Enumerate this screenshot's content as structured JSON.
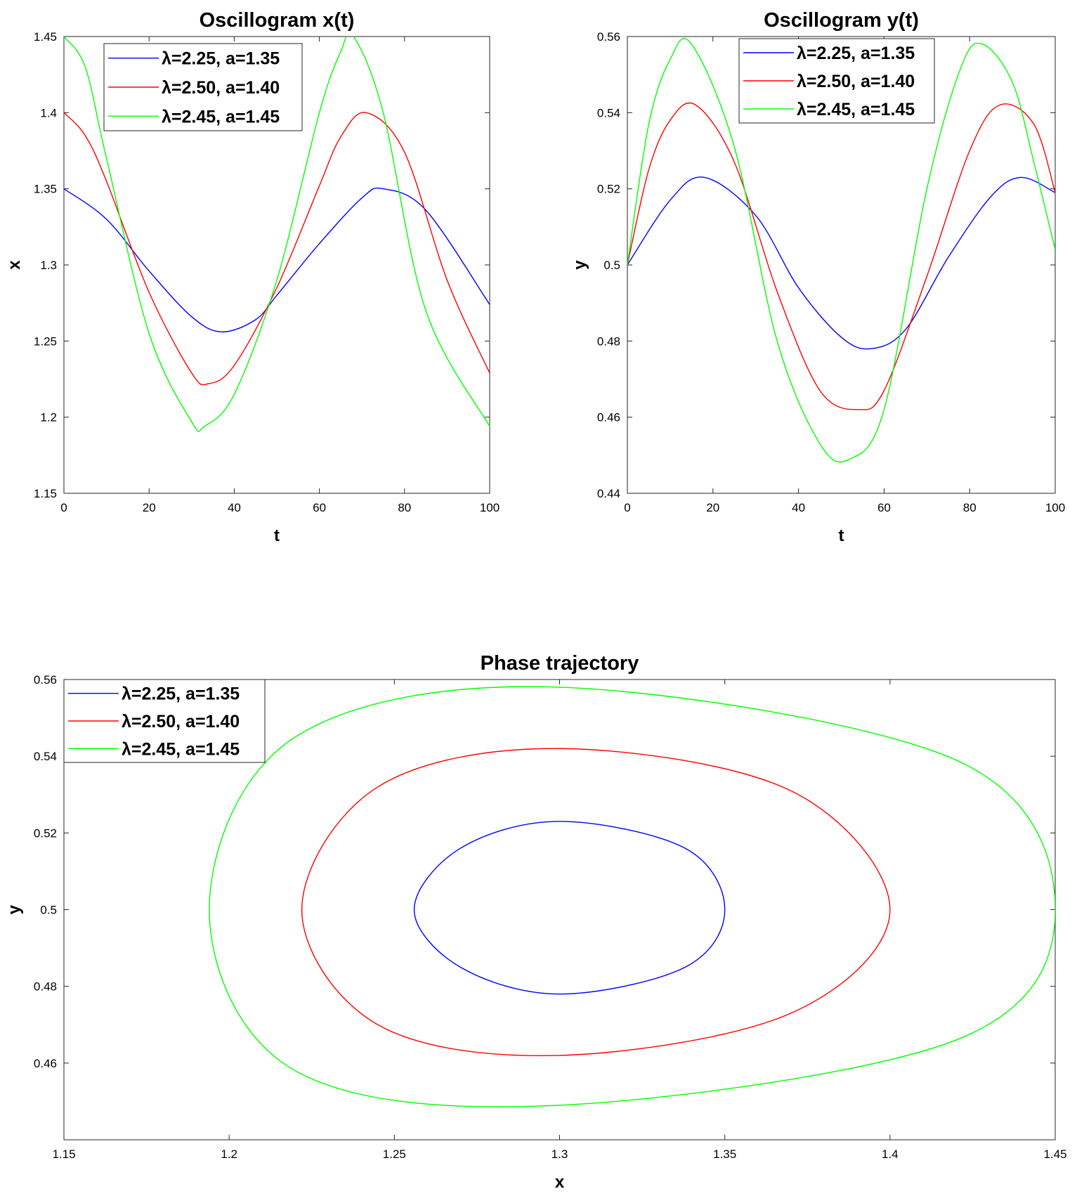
{
  "chart_data": [
    {
      "type": "line",
      "title": "Oscillogram x(t)",
      "xlabel": "t",
      "ylabel": "x",
      "xlim": [
        0,
        100
      ],
      "ylim": [
        1.15,
        1.45
      ],
      "xticks": [
        "0",
        "20",
        "40",
        "60",
        "80",
        "100"
      ],
      "yticks": [
        "1.15",
        "1.2",
        "1.25",
        "1.3",
        "1.35",
        "1.4",
        "1.45"
      ],
      "legend_position": "top-left",
      "grid": false,
      "series": [
        {
          "name": "λ=2.25, a=1.35",
          "color": "#0000ff",
          "x": [
            0,
            10,
            20,
            30,
            37,
            45,
            50,
            60,
            70,
            75,
            85,
            100
          ],
          "values": [
            1.35,
            1.33,
            1.296,
            1.266,
            1.256,
            1.264,
            1.28,
            1.314,
            1.344,
            1.35,
            1.336,
            1.274
          ]
        },
        {
          "name": "λ=2.50, a=1.40",
          "color": "#ff0000",
          "x": [
            0,
            5,
            10,
            20,
            30,
            34,
            40,
            50,
            60,
            65,
            71,
            80,
            90,
            100
          ],
          "values": [
            1.4,
            1.385,
            1.355,
            1.282,
            1.229,
            1.222,
            1.234,
            1.285,
            1.352,
            1.384,
            1.4,
            1.374,
            1.29,
            1.229
          ]
        },
        {
          "name": "λ=2.45, a=1.45",
          "color": "#00ff00",
          "x": [
            0,
            5,
            10,
            20,
            30,
            33,
            40,
            50,
            60,
            65,
            68,
            75,
            85,
            100
          ],
          "values": [
            1.45,
            1.43,
            1.37,
            1.255,
            1.197,
            1.194,
            1.215,
            1.29,
            1.4,
            1.44,
            1.45,
            1.4,
            1.27,
            1.194
          ]
        }
      ]
    },
    {
      "type": "line",
      "title": "Oscillogram y(t)",
      "xlabel": "t",
      "ylabel": "y",
      "xlim": [
        0,
        100
      ],
      "ylim": [
        0.44,
        0.56
      ],
      "xticks": [
        "0",
        "20",
        "40",
        "60",
        "80",
        "100"
      ],
      "yticks": [
        "0.44",
        "0.46",
        "0.48",
        "0.5",
        "0.52",
        "0.54",
        "0.56"
      ],
      "legend_position": "top-right",
      "grid": false,
      "series": [
        {
          "name": "λ=2.25, a=1.35",
          "color": "#0000ff",
          "x": [
            0,
            10,
            18,
            30,
            40,
            50,
            57,
            65,
            75,
            85,
            92,
            100
          ],
          "values": [
            0.5,
            0.517,
            0.523,
            0.513,
            0.494,
            0.481,
            0.478,
            0.483,
            0.502,
            0.518,
            0.523,
            0.519
          ]
        },
        {
          "name": "λ=2.50, a=1.40",
          "color": "#ff0000",
          "x": [
            0,
            5,
            10,
            16,
            25,
            35,
            45,
            54,
            60,
            70,
            80,
            87,
            95,
            100
          ],
          "values": [
            0.5,
            0.525,
            0.538,
            0.542,
            0.527,
            0.493,
            0.467,
            0.462,
            0.467,
            0.497,
            0.53,
            0.542,
            0.537,
            0.519
          ]
        },
        {
          "name": "λ=2.45, a=1.45",
          "color": "#00ff00",
          "x": [
            0,
            5,
            10,
            15,
            25,
            35,
            45,
            52,
            60,
            70,
            78,
            83,
            90,
            95,
            100
          ],
          "values": [
            0.5,
            0.537,
            0.554,
            0.558,
            0.531,
            0.48,
            0.453,
            0.449,
            0.462,
            0.52,
            0.552,
            0.558,
            0.548,
            0.527,
            0.504
          ]
        }
      ]
    },
    {
      "type": "line",
      "title": "Phase trajectory",
      "xlabel": "x",
      "ylabel": "y",
      "xlim": [
        1.15,
        1.45
      ],
      "ylim": [
        0.44,
        0.56
      ],
      "xticks": [
        "1.15",
        "1.2",
        "1.25",
        "1.3",
        "1.35",
        "1.4",
        "1.45"
      ],
      "yticks": [
        "0.46",
        "0.48",
        "0.5",
        "0.52",
        "0.54",
        "0.56"
      ],
      "legend_position": "top-left",
      "grid": false,
      "series": [
        {
          "name": "λ=2.25, a=1.35",
          "color": "#0000ff",
          "x": [
            1.35,
            1.338,
            1.3,
            1.27,
            1.256,
            1.27,
            1.3,
            1.338,
            1.35
          ],
          "values": [
            0.5,
            0.516,
            0.523,
            0.516,
            0.5,
            0.485,
            0.478,
            0.485,
            0.5
          ]
        },
        {
          "name": "λ=2.50, a=1.40",
          "color": "#ff0000",
          "x": [
            1.4,
            1.37,
            1.3,
            1.245,
            1.222,
            1.245,
            1.3,
            1.37,
            1.4
          ],
          "values": [
            0.5,
            0.531,
            0.542,
            0.532,
            0.5,
            0.47,
            0.462,
            0.473,
            0.5
          ]
        },
        {
          "name": "λ=2.45, a=1.45",
          "color": "#00ff00",
          "x": [
            1.45,
            1.42,
            1.3,
            1.22,
            1.194,
            1.22,
            1.3,
            1.42,
            1.45
          ],
          "values": [
            0.5,
            0.539,
            0.558,
            0.545,
            0.5,
            0.458,
            0.449,
            0.466,
            0.5
          ]
        }
      ]
    }
  ]
}
